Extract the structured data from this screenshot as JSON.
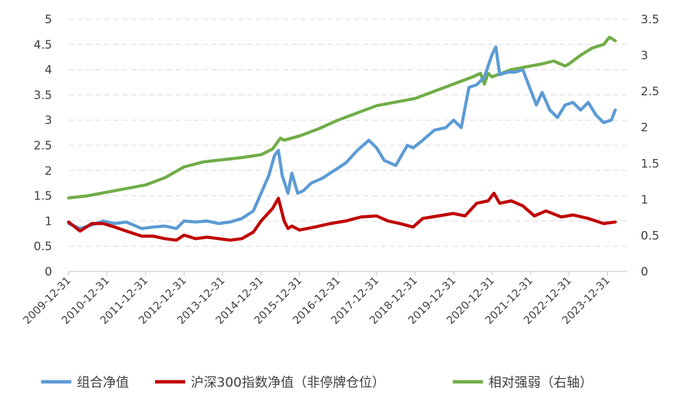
{
  "chart_data": {
    "type": "line",
    "x_categories": [
      "2009-12-31",
      "2010-12-31",
      "2011-12-31",
      "2012-12-31",
      "2013-12-31",
      "2014-12-31",
      "2015-12-31",
      "2016-12-31",
      "2017-12-31",
      "2018-12-31",
      "2019-12-31",
      "2020-12-31",
      "2021-12-31",
      "2022-12-31",
      "2023-12-31"
    ],
    "y_left": {
      "ticks": [
        "0",
        "0.5",
        "1",
        "1.5",
        "2",
        "2.5",
        "3",
        "3.5",
        "4",
        "4.5",
        "5"
      ],
      "range": [
        0,
        5
      ]
    },
    "y_right": {
      "ticks": [
        "0",
        "0.5",
        "1",
        "1.5",
        "2",
        "2.5",
        "3",
        "3.5"
      ],
      "range": [
        0,
        3.5
      ]
    },
    "grid": true,
    "legend_position": "bottom",
    "series": [
      {
        "name": "组合净值",
        "axis": "left",
        "color": "#5b9bd5",
        "x": [
          2010.0,
          2010.3,
          2010.6,
          2010.9,
          2011.2,
          2011.5,
          2011.9,
          2012.2,
          2012.5,
          2012.8,
          2013.0,
          2013.3,
          2013.6,
          2013.9,
          2014.2,
          2014.5,
          2014.8,
          2015.0,
          2015.2,
          2015.35,
          2015.45,
          2015.55,
          2015.7,
          2015.8,
          2015.95,
          2016.1,
          2016.3,
          2016.6,
          2016.9,
          2017.2,
          2017.5,
          2017.8,
          2018.0,
          2018.2,
          2018.5,
          2018.8,
          2018.95,
          2019.2,
          2019.5,
          2019.8,
          2020.0,
          2020.2,
          2020.4,
          2020.6,
          2020.8,
          2021.0,
          2021.1,
          2021.2,
          2021.4,
          2021.6,
          2021.8,
          2022.0,
          2022.15,
          2022.3,
          2022.5,
          2022.7,
          2022.9,
          2023.1,
          2023.3,
          2023.5,
          2023.7,
          2023.9,
          2024.1,
          2024.2
        ],
        "values": [
          0.95,
          0.85,
          0.92,
          1.0,
          0.95,
          0.98,
          0.85,
          0.88,
          0.9,
          0.85,
          1.0,
          0.98,
          1.0,
          0.95,
          0.98,
          1.05,
          1.2,
          1.55,
          1.9,
          2.3,
          2.4,
          1.9,
          1.55,
          1.95,
          1.55,
          1.6,
          1.75,
          1.85,
          2.0,
          2.15,
          2.4,
          2.6,
          2.45,
          2.2,
          2.1,
          2.5,
          2.45,
          2.6,
          2.8,
          2.85,
          3.0,
          2.85,
          3.65,
          3.7,
          3.85,
          4.3,
          4.45,
          3.9,
          3.95,
          3.95,
          4.0,
          3.6,
          3.3,
          3.55,
          3.2,
          3.05,
          3.3,
          3.35,
          3.2,
          3.35,
          3.1,
          2.95,
          3.0,
          3.2
        ]
      },
      {
        "name": "沪深300指数净值（非停牌仓位）",
        "axis": "left",
        "color": "#c00000",
        "x": [
          2010.0,
          2010.3,
          2010.6,
          2010.9,
          2011.2,
          2011.5,
          2011.9,
          2012.2,
          2012.5,
          2012.8,
          2013.0,
          2013.3,
          2013.6,
          2013.9,
          2014.2,
          2014.5,
          2014.8,
          2015.0,
          2015.3,
          2015.45,
          2015.6,
          2015.7,
          2015.8,
          2016.0,
          2016.4,
          2016.8,
          2017.2,
          2017.6,
          2018.0,
          2018.3,
          2018.6,
          2018.95,
          2019.2,
          2019.6,
          2020.0,
          2020.3,
          2020.6,
          2020.9,
          2021.05,
          2021.2,
          2021.5,
          2021.8,
          2022.1,
          2022.4,
          2022.8,
          2023.1,
          2023.5,
          2023.9,
          2024.2
        ],
        "values": [
          0.98,
          0.8,
          0.95,
          0.95,
          0.88,
          0.8,
          0.7,
          0.7,
          0.65,
          0.62,
          0.72,
          0.65,
          0.68,
          0.65,
          0.62,
          0.65,
          0.78,
          1.0,
          1.25,
          1.45,
          1.0,
          0.85,
          0.9,
          0.82,
          0.88,
          0.95,
          1.0,
          1.08,
          1.1,
          1.0,
          0.95,
          0.88,
          1.05,
          1.1,
          1.15,
          1.1,
          1.35,
          1.4,
          1.55,
          1.35,
          1.4,
          1.3,
          1.1,
          1.2,
          1.08,
          1.12,
          1.05,
          0.95,
          0.98
        ]
      },
      {
        "name": "相对强弱（右轴）",
        "axis": "right",
        "color": "#70ad47",
        "x": [
          2010.0,
          2010.5,
          2011.0,
          2011.5,
          2012.0,
          2012.5,
          2013.0,
          2013.5,
          2014.0,
          2014.5,
          2015.0,
          2015.3,
          2015.5,
          2015.6,
          2016.0,
          2016.5,
          2017.0,
          2017.5,
          2018.0,
          2018.5,
          2019.0,
          2019.5,
          2020.0,
          2020.5,
          2020.7,
          2020.8,
          2020.9,
          2021.0,
          2021.5,
          2022.0,
          2022.3,
          2022.6,
          2022.9,
          2023.0,
          2023.3,
          2023.6,
          2023.9,
          2024.05,
          2024.2
        ],
        "values": [
          1.02,
          1.05,
          1.1,
          1.15,
          1.2,
          1.3,
          1.45,
          1.52,
          1.55,
          1.58,
          1.62,
          1.7,
          1.85,
          1.82,
          1.88,
          1.98,
          2.1,
          2.2,
          2.3,
          2.35,
          2.4,
          2.5,
          2.6,
          2.7,
          2.75,
          2.6,
          2.75,
          2.7,
          2.8,
          2.85,
          2.88,
          2.92,
          2.85,
          2.88,
          3.0,
          3.1,
          3.15,
          3.25,
          3.2
        ]
      }
    ]
  }
}
